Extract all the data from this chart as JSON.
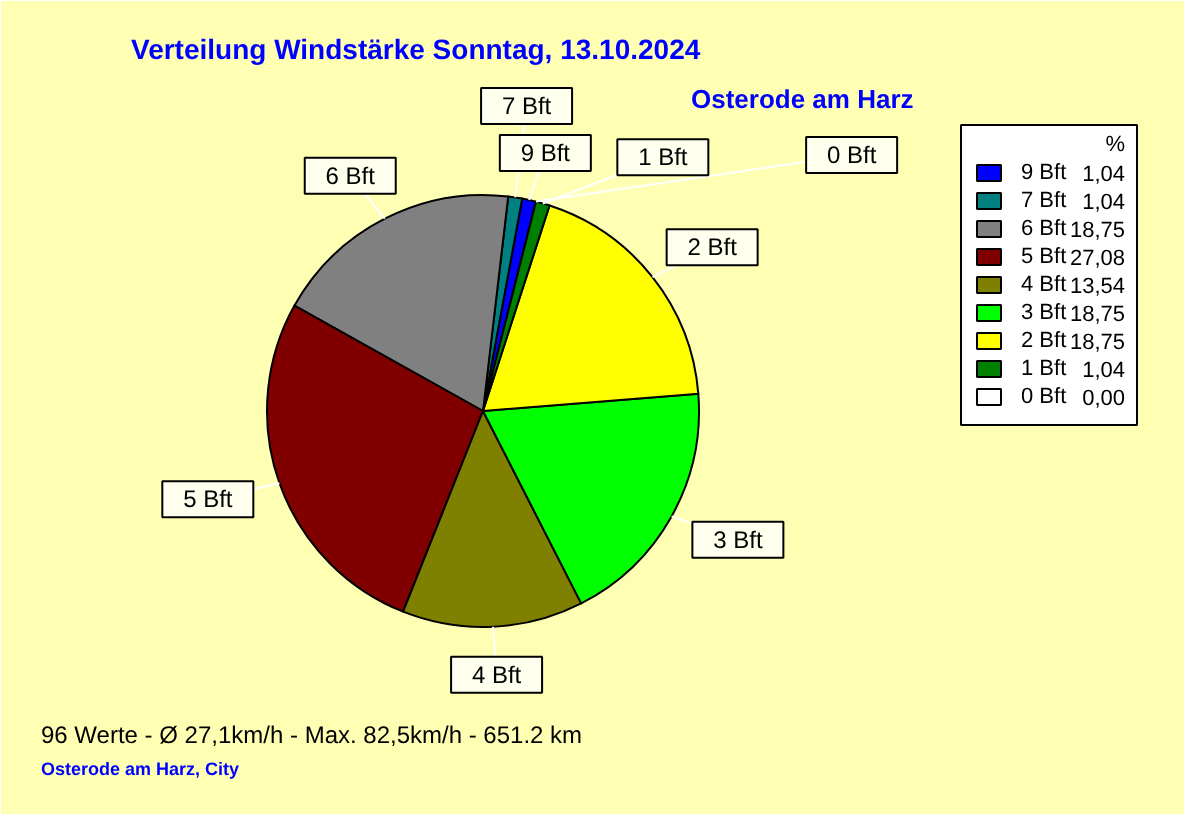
{
  "chart_data": {
    "type": "pie",
    "title": "Verteilung Windstärke  Sonntag, 13.10.2024",
    "subtitle": "Osterode am Harz",
    "categories": [
      "9 Bft",
      "7 Bft",
      "6 Bft",
      "5 Bft",
      "4 Bft",
      "3 Bft",
      "2 Bft",
      "1 Bft",
      "0 Bft"
    ],
    "values": [
      1.04,
      1.04,
      18.75,
      27.08,
      13.54,
      18.75,
      18.75,
      1.04,
      0.0
    ],
    "value_labels": [
      "1,04",
      "1,04",
      "18,75",
      "27,08",
      "13,54",
      "18,75",
      "18,75",
      "1,04",
      "0,00"
    ],
    "colors": [
      "#0000ff",
      "#008080",
      "#808080",
      "#800000",
      "#808000",
      "#00ff00",
      "#ffff00",
      "#008000",
      "#ffffff"
    ],
    "legend": "right",
    "legend_title": "%",
    "annotations": [
      "96 Werte  -  Ø 27,1km/h  -  Max. 82,5km/h  -  651.2 km",
      "Osterode am Harz, City"
    ]
  }
}
